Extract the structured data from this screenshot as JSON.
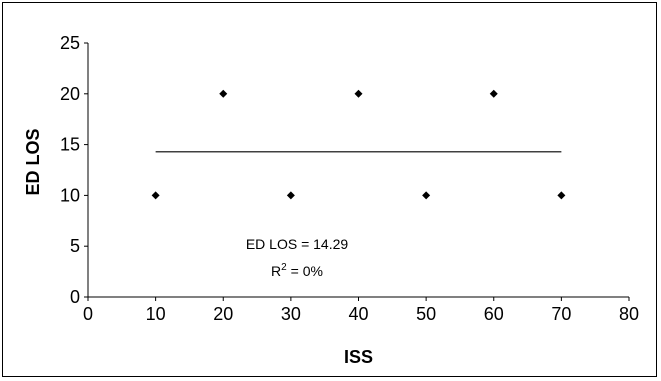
{
  "chart_data": {
    "type": "scatter",
    "title": "",
    "xlabel": "ISS",
    "ylabel": "ED LOS",
    "xlim": [
      0,
      80
    ],
    "ylim": [
      0,
      25
    ],
    "xticks": [
      0,
      10,
      20,
      30,
      40,
      50,
      60,
      70,
      80
    ],
    "yticks": [
      0,
      5,
      10,
      15,
      20,
      25
    ],
    "grid": false,
    "legend": "none",
    "series": [
      {
        "type": "scatter",
        "marker": "diamond",
        "color": "#000000",
        "points": [
          {
            "x": 10,
            "y": 10
          },
          {
            "x": 20,
            "y": 20
          },
          {
            "x": 30,
            "y": 10
          },
          {
            "x": 40,
            "y": 20
          },
          {
            "x": 50,
            "y": 10
          },
          {
            "x": 60,
            "y": 20
          },
          {
            "x": 70,
            "y": 10
          }
        ]
      },
      {
        "type": "line",
        "color": "#000000",
        "points": [
          {
            "x": 10,
            "y": 14.29
          },
          {
            "x": 70,
            "y": 14.29
          }
        ]
      }
    ],
    "annotations": {
      "equation": "ED LOS =  14.29",
      "r2_prefix": "R",
      "r2_sup": "2",
      "r2_value": " = 0%"
    }
  }
}
